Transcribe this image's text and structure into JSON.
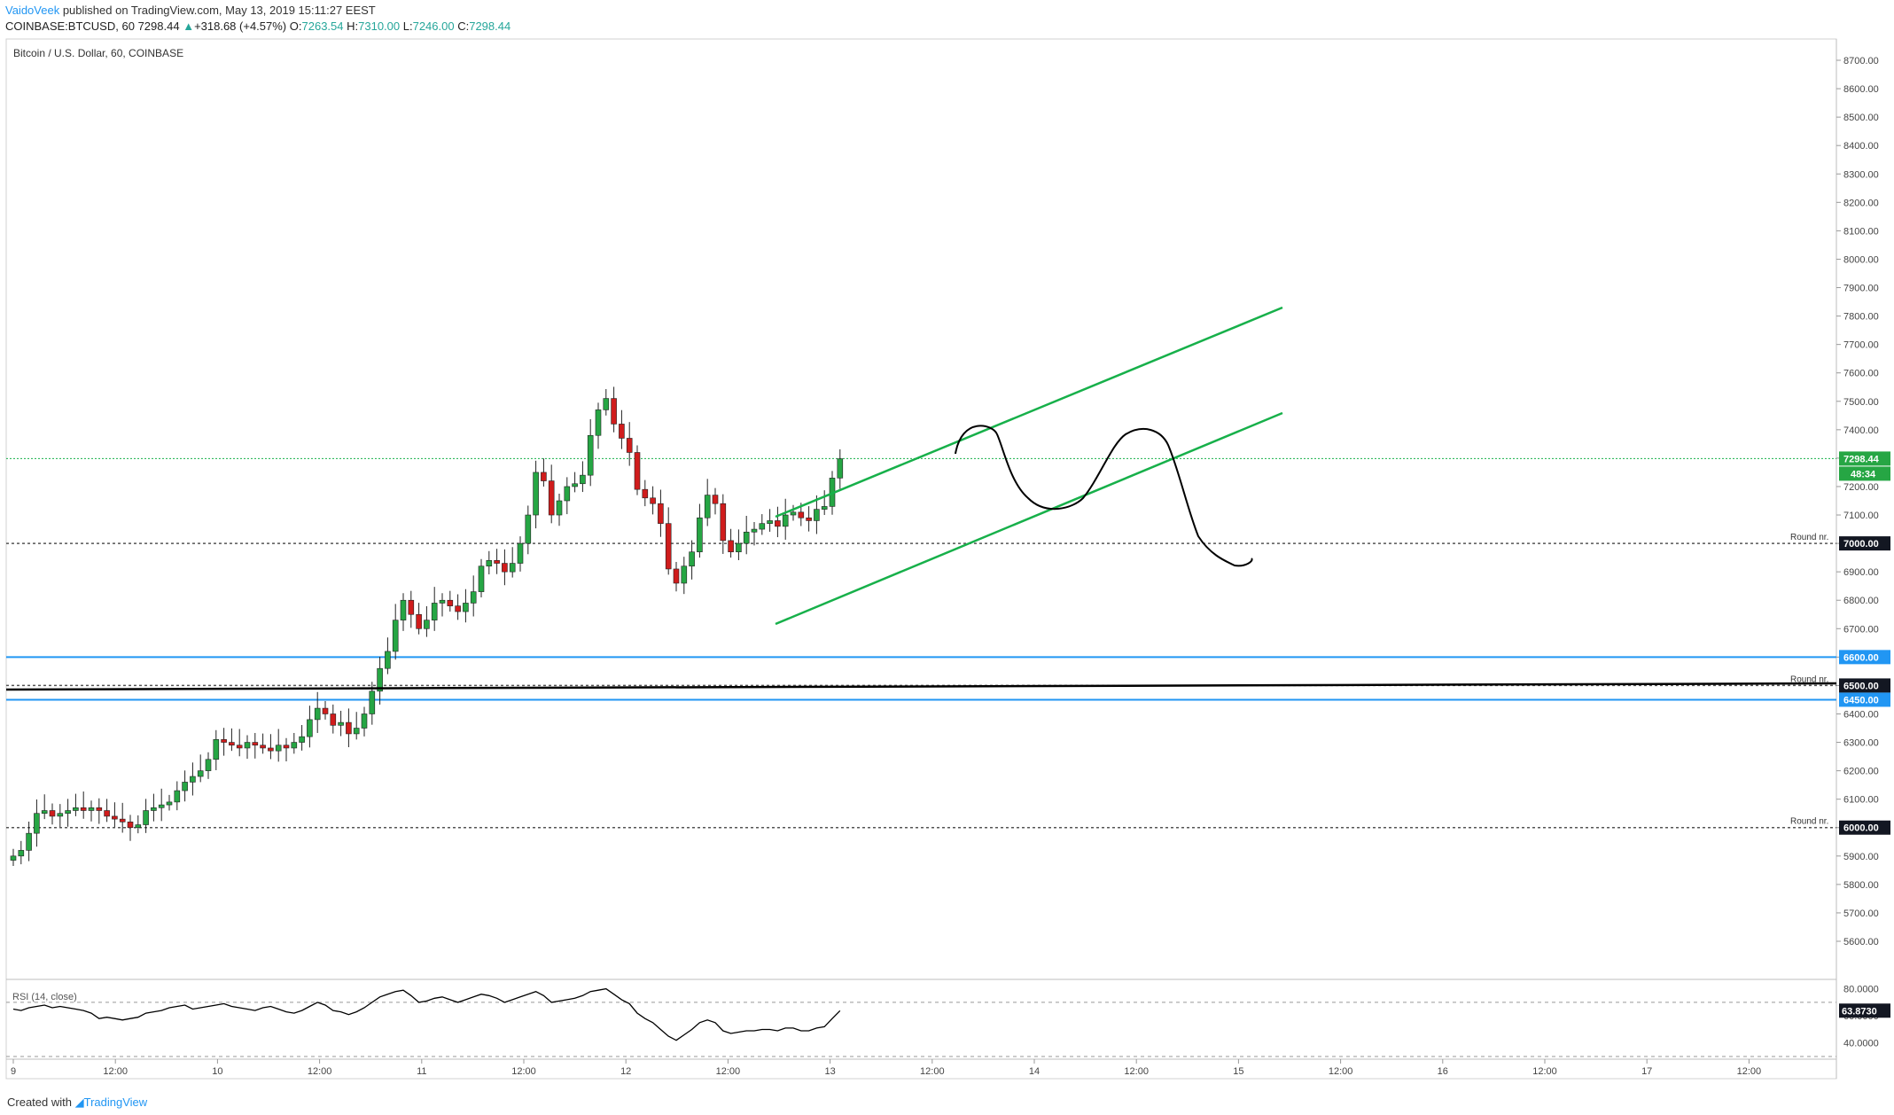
{
  "header": {
    "author": "VaidoVeek",
    "published": "published on TradingView.com, May 13, 2019 15:11:27 EEST",
    "symbol_line": "COINBASE:BTCUSD, 60",
    "last": "7298.44",
    "change": "+318.68 (+4.57%)",
    "o_label": "O:",
    "o": "7263.54",
    "h_label": "H:",
    "h": "7310.00",
    "l_label": "L:",
    "l": "7246.00",
    "c_label": "C:",
    "c": "7298.44"
  },
  "footer": {
    "created_with": "Created with",
    "brand": "TradingView"
  },
  "colors": {
    "up": "#26a644",
    "down": "#d01c1c",
    "channel": "#17b04a",
    "support": "#2196f3",
    "trend": "#000000",
    "rsi": "#000000",
    "tag_green": "#26a644",
    "tag_black": "#131722",
    "tag_blue": "#2196f3"
  },
  "chart_data": {
    "type": "candlestick",
    "title": "Bitcoin / U.S. Dollar, 60, COINBASE",
    "ylim": [
      5500,
      8750
    ],
    "y_ticks": [
      "8700.00",
      "8600.00",
      "8500.00",
      "8400.00",
      "8300.00",
      "8200.00",
      "8100.00",
      "8000.00",
      "7900.00",
      "7800.00",
      "7700.00",
      "7600.00",
      "7500.00",
      "7400.00",
      "7300.00",
      "7200.00",
      "7100.00",
      "7000.00",
      "6900.00",
      "6800.00",
      "6700.00",
      "6600.00",
      "6500.00",
      "6400.00",
      "6300.00",
      "6200.00",
      "6100.00",
      "6000.00",
      "5900.00",
      "5800.00",
      "5700.00",
      "5600.00"
    ],
    "x_ticks": [
      "9",
      "12:00",
      "10",
      "12:00",
      "11",
      "12:00",
      "12",
      "12:00",
      "13",
      "12:00",
      "14",
      "12:00",
      "15",
      "12:00",
      "16",
      "12:00",
      "17",
      "12:00"
    ],
    "candles_close": [
      5900,
      5920,
      5980,
      6050,
      6060,
      6040,
      6050,
      6060,
      6070,
      6060,
      6070,
      6060,
      6040,
      6030,
      6020,
      6000,
      6010,
      6060,
      6070,
      6080,
      6090,
      6130,
      6160,
      6180,
      6200,
      6240,
      6310,
      6300,
      6290,
      6280,
      6300,
      6290,
      6280,
      6270,
      6290,
      6280,
      6300,
      6320,
      6380,
      6420,
      6400,
      6360,
      6370,
      6330,
      6350,
      6400,
      6480,
      6560,
      6620,
      6730,
      6800,
      6750,
      6700,
      6730,
      6790,
      6800,
      6780,
      6760,
      6790,
      6830,
      6920,
      6940,
      6930,
      6900,
      6930,
      7000,
      7100,
      7250,
      7220,
      7100,
      7150,
      7200,
      7210,
      7240,
      7380,
      7470,
      7510,
      7420,
      7370,
      7320,
      7190,
      7160,
      7140,
      7070,
      6910,
      6860,
      6920,
      6970,
      7090,
      7170,
      7140,
      7010,
      6970,
      7000,
      7040,
      7050,
      7070,
      7080,
      7060,
      7100,
      7110,
      7090,
      7080,
      7120,
      7130,
      7230,
      7298
    ],
    "levels": [
      {
        "price": "7298.44",
        "label": ""
      },
      {
        "price": "7000.00",
        "label": "Round nr."
      },
      {
        "price": "6600.00",
        "label": ""
      },
      {
        "price": "6500.00",
        "label": "Round nr."
      },
      {
        "price": "6450.00",
        "label": ""
      },
      {
        "price": "6000.00",
        "label": "Round nr."
      }
    ],
    "countdown": "48:34",
    "rsi": {
      "title": "RSI (14, close)",
      "value": "63.8730",
      "ylim": [
        30,
        85
      ],
      "y_ticks": [
        "80.0000",
        "60.0000",
        "40.0000"
      ],
      "values": [
        65,
        64,
        66,
        67,
        68,
        66,
        67,
        66,
        65,
        64,
        62,
        58,
        59,
        58,
        57,
        58,
        59,
        62,
        63,
        64,
        66,
        67,
        68,
        65,
        66,
        67,
        68,
        69,
        67,
        66,
        65,
        64,
        66,
        67,
        65,
        63,
        62,
        64,
        67,
        70,
        68,
        64,
        63,
        61,
        63,
        66,
        70,
        74,
        76,
        78,
        79,
        75,
        70,
        71,
        73,
        74,
        72,
        70,
        72,
        74,
        76,
        75,
        73,
        70,
        72,
        74,
        76,
        78,
        75,
        70,
        71,
        72,
        73,
        75,
        78,
        79,
        80,
        76,
        72,
        69,
        62,
        58,
        55,
        50,
        45,
        42,
        46,
        50,
        55,
        57,
        55,
        49,
        47,
        48,
        49,
        49,
        50,
        50,
        49,
        51,
        51,
        49,
        49,
        51,
        52,
        58,
        63.87
      ]
    }
  }
}
